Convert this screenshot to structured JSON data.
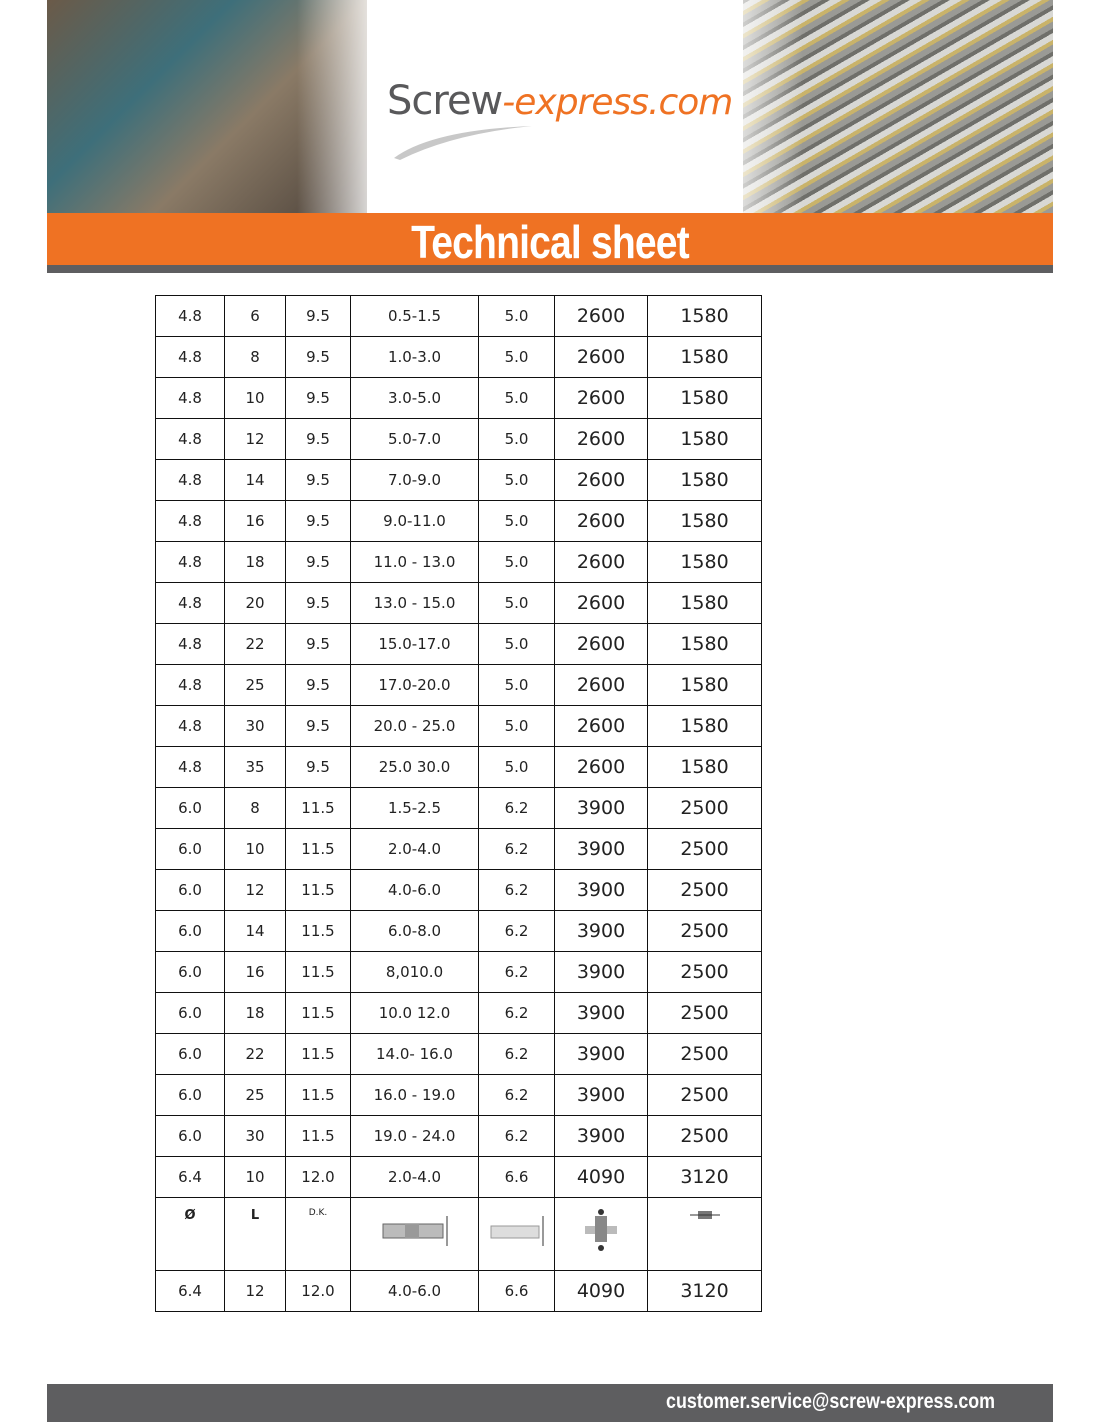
{
  "header": {
    "logo_part1": "Screw",
    "logo_part2": "-express.com",
    "title": "Technical sheet"
  },
  "table": {
    "rows": [
      [
        "4.8",
        "6",
        "9.5",
        "0.5-1.5",
        "5.0",
        "2600",
        "1580"
      ],
      [
        "4.8",
        "8",
        "9.5",
        "1.0-3.0",
        "5.0",
        "2600",
        "1580"
      ],
      [
        "4.8",
        "10",
        "9.5",
        "3.0-5.0",
        "5.0",
        "2600",
        "1580"
      ],
      [
        "4.8",
        "12",
        "9.5",
        "5.0-7.0",
        "5.0",
        "2600",
        "1580"
      ],
      [
        "4.8",
        "14",
        "9.5",
        "7.0-9.0",
        "5.0",
        "2600",
        "1580"
      ],
      [
        "4.8",
        "16",
        "9.5",
        "9.0-11.0",
        "5.0",
        "2600",
        "1580"
      ],
      [
        "4.8",
        "18",
        "9.5",
        "11.0 - 13.0",
        "5.0",
        "2600",
        "1580"
      ],
      [
        "4.8",
        "20",
        "9.5",
        "13.0 - 15.0",
        "5.0",
        "2600",
        "1580"
      ],
      [
        "4.8",
        "22",
        "9.5",
        "15.0-17.0",
        "5.0",
        "2600",
        "1580"
      ],
      [
        "4.8",
        "25",
        "9.5",
        "17.0-20.0",
        "5.0",
        "2600",
        "1580"
      ],
      [
        "4.8",
        "30",
        "9.5",
        "20.0 - 25.0",
        "5.0",
        "2600",
        "1580"
      ],
      [
        "4.8",
        "35",
        "9.5",
        "25.0 30.0",
        "5.0",
        "2600",
        "1580"
      ],
      [
        "6.0",
        "8",
        "11.5",
        "1.5-2.5",
        "6.2",
        "3900",
        "2500"
      ],
      [
        "6.0",
        "10",
        "11.5",
        "2.0-4.0",
        "6.2",
        "3900",
        "2500"
      ],
      [
        "6.0",
        "12",
        "11.5",
        "4.0-6.0",
        "6.2",
        "3900",
        "2500"
      ],
      [
        "6.0",
        "14",
        "11.5",
        "6.0-8.0",
        "6.2",
        "3900",
        "2500"
      ],
      [
        "6.0",
        "16",
        "11.5",
        "8,010.0",
        "6.2",
        "3900",
        "2500"
      ],
      [
        "6.0",
        "18",
        "11.5",
        "10.0 12.0",
        "6.2",
        "3900",
        "2500"
      ],
      [
        "6.0",
        "22",
        "11.5",
        "14.0- 16.0",
        "6.2",
        "3900",
        "2500"
      ],
      [
        "6.0",
        "25",
        "11.5",
        "16.0 - 19.0",
        "6.2",
        "3900",
        "2500"
      ],
      [
        "6.0",
        "30",
        "11.5",
        "19.0 - 24.0",
        "6.2",
        "3900",
        "2500"
      ],
      [
        "6.4",
        "10",
        "12.0",
        "2.0-4.0",
        "6.6",
        "4090",
        "3120"
      ]
    ],
    "legend": {
      "diameter": "Ø",
      "length": "L",
      "head": "D.K."
    },
    "last_row": [
      "6.4",
      "12",
      "12.0",
      "4.0-6.0",
      "6.6",
      "4090",
      "3120"
    ]
  },
  "footer": {
    "email": "customer.service@screw-express.com"
  },
  "colors": {
    "orange": "#ef7223",
    "gray": "#5e5e60"
  }
}
